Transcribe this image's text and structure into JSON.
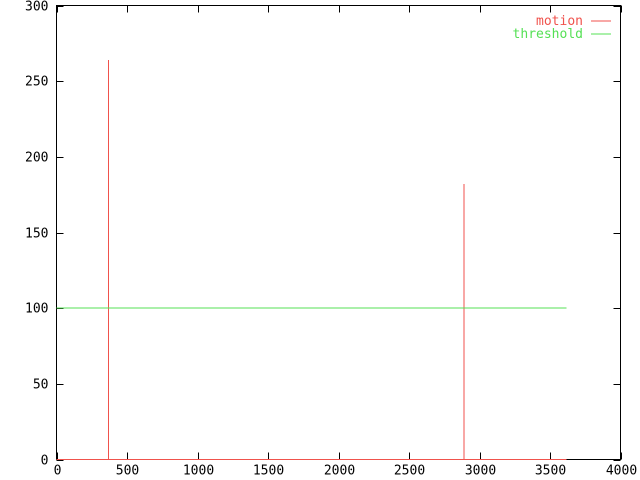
{
  "chart_data": {
    "type": "line",
    "title": "",
    "xlabel": "",
    "ylabel": "",
    "xlim": [
      0,
      4000
    ],
    "ylim": [
      0,
      300
    ],
    "xticks": [
      0,
      500,
      1000,
      1500,
      2000,
      2500,
      3000,
      3500,
      4000
    ],
    "yticks": [
      0,
      50,
      100,
      150,
      200,
      250,
      300
    ],
    "grid": false,
    "legend_position": "top-right-inside",
    "series": [
      {
        "name": "motion",
        "color": "#f0524c",
        "style": "impulse spikes on zero baseline",
        "points": [
          [
            0,
            0
          ],
          [
            370,
            0
          ],
          [
            370,
            264
          ],
          [
            370,
            0
          ],
          [
            2890,
            0
          ],
          [
            2890,
            182
          ],
          [
            2890,
            0
          ],
          [
            3617,
            0
          ]
        ]
      },
      {
        "name": "threshold",
        "color": "#55e055",
        "style": "constant horizontal line",
        "points": [
          [
            0,
            100
          ],
          [
            3617,
            100
          ]
        ]
      }
    ]
  },
  "legend": {
    "entries": [
      {
        "label": "motion",
        "color": "#f0524c"
      },
      {
        "label": "threshold",
        "color": "#55e055"
      }
    ]
  },
  "colors": {
    "background": "#ffffff",
    "axis": "#000000",
    "tick_text": "#000000"
  }
}
